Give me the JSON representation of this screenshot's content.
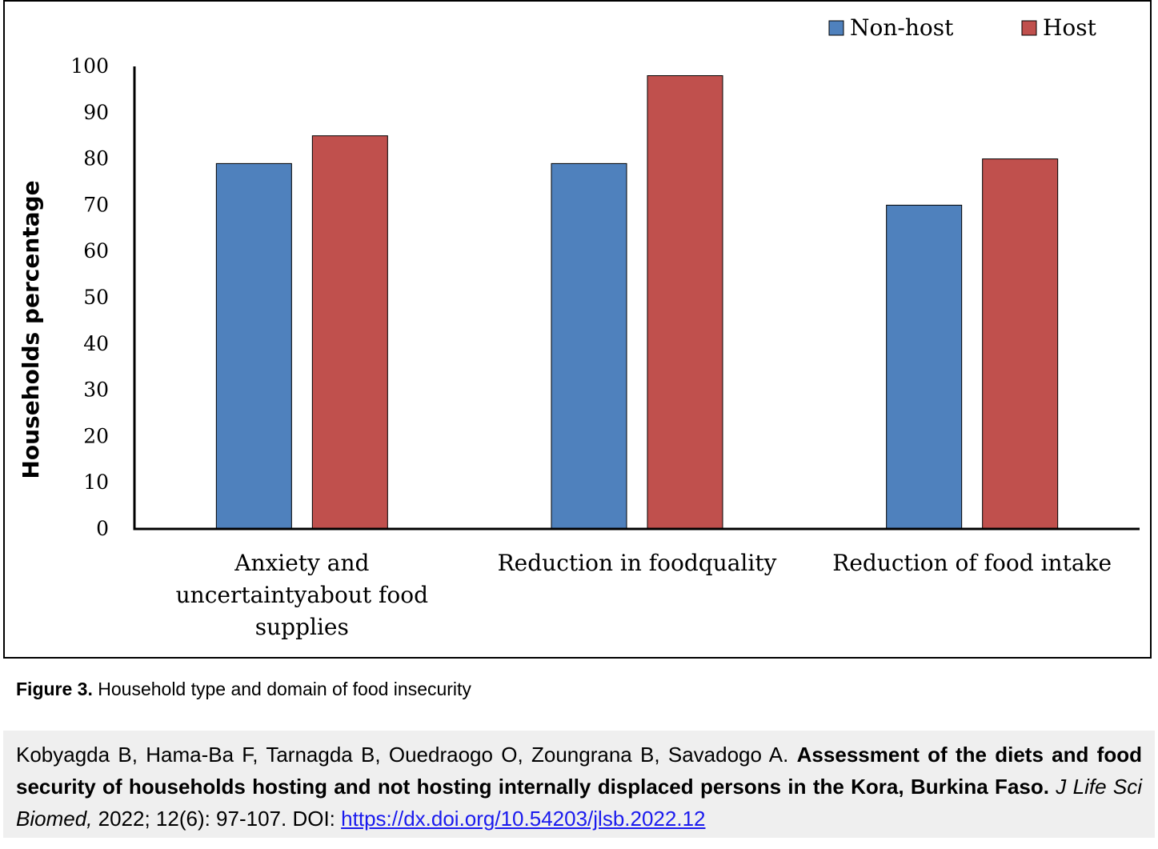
{
  "chart_data": {
    "type": "bar",
    "categories": [
      [
        "Anxiety and",
        "uncertaintyabout food",
        "supplies"
      ],
      [
        "Reduction in foodquality"
      ],
      [
        "Reduction of food intake"
      ]
    ],
    "series": [
      {
        "name": "Non-host",
        "color": "#4f81bd",
        "values": [
          79,
          79,
          70
        ]
      },
      {
        "name": "Host",
        "color": "#c0504d",
        "values": [
          85,
          98,
          80
        ]
      }
    ],
    "ylabel": "Households percentage",
    "ylim": [
      0,
      100
    ],
    "yticks": [
      "0",
      "10",
      "20",
      "30",
      "40",
      "50",
      "60",
      "70",
      "80",
      "90",
      "100"
    ],
    "legend": "top-right",
    "grid": false
  },
  "caption": {
    "label": "Figure 3.",
    "text": "Household type and domain of food insecurity"
  },
  "citation": {
    "authors": "Kobyagda B, Hama-Ba F, Tarnagda B, Ouedraogo O, Zoungrana B, Savadogo A.",
    "title": "Assessment of the diets and food security of households hosting and not hosting internally displaced persons in the Kora, Burkina Faso.",
    "journal": "J Life Sci Biomed,",
    "details": "2022; 12(6): 97-107. DOI:",
    "doi_link": "https://dx.doi.org/10.54203/jlsb.2022.12"
  }
}
